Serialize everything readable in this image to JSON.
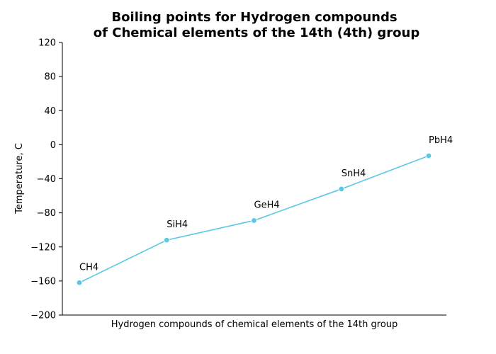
{
  "chart_data": {
    "type": "line",
    "title_lines": [
      "Boiling points for Hydrogen compounds",
      "of Chemical elements of the 14th (4th) group"
    ],
    "xlabel": "Hydrogen compounds of chemical elements of the 14th group",
    "ylabel": "Temperature, C",
    "ylim": [
      -200,
      120
    ],
    "yticks": [
      -200,
      -160,
      -120,
      -80,
      -40,
      0,
      40,
      80,
      120
    ],
    "ytick_labels": [
      "−200",
      "−160",
      "−120",
      "−80",
      "−40",
      "0",
      "40",
      "80",
      "120"
    ],
    "categories": [
      "CH4",
      "SiH4",
      "GeH4",
      "SnH4",
      "PbH4"
    ],
    "values": [
      -162,
      -112,
      -89,
      -52,
      -13
    ],
    "color": "#5bc8e6",
    "grid": false,
    "legend": "none"
  }
}
